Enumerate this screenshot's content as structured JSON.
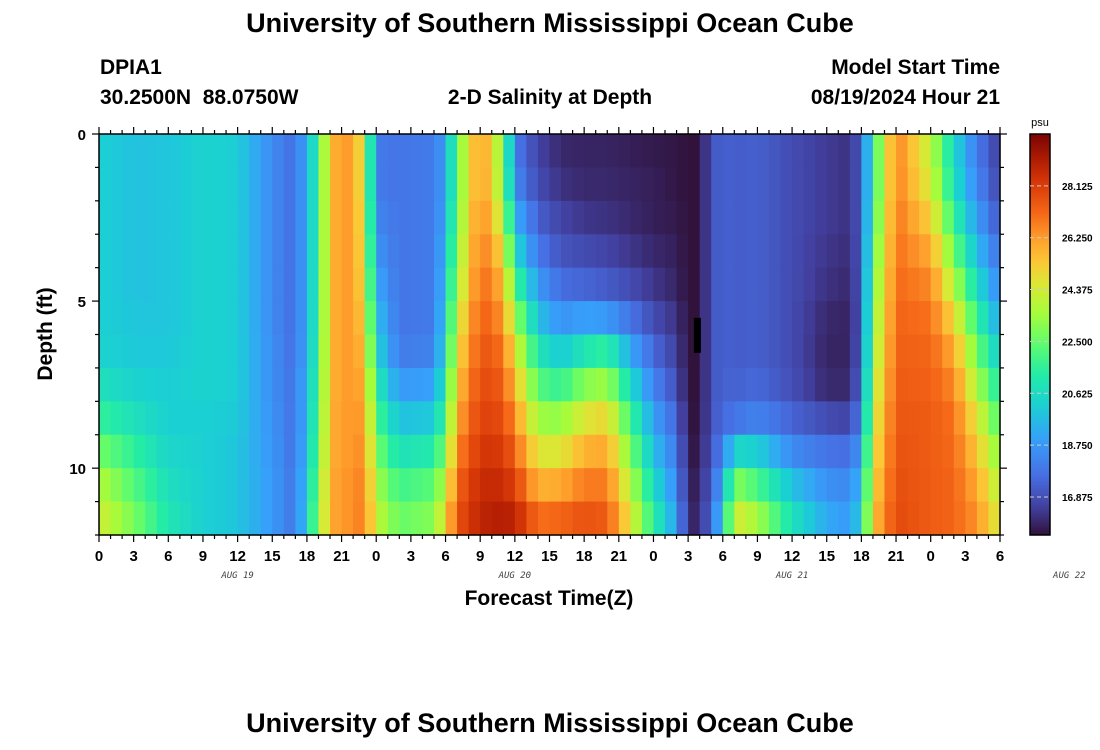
{
  "page": {
    "title": "University of Southern Mississippi Ocean Cube",
    "footer_title": "University of Southern Mississippi Ocean Cube",
    "station_id": "DPIA1",
    "station_coords": "30.2500N  88.0750W",
    "model_start_label": "Model Start Time",
    "model_start_value": "08/19/2024 Hour 21"
  },
  "chart_data": {
    "type": "heatmap",
    "title": "2-D Salinity at Depth",
    "xlabel": "Forecast Time(Z)",
    "ylabel": "Depth (ft)",
    "units": "psu",
    "hours_per_column": 1,
    "columns_start": "08/19 00Z",
    "x_tick_labels": [
      "0",
      "3",
      "6",
      "9",
      "12",
      "15",
      "18",
      "21",
      "0",
      "3",
      "6",
      "9",
      "12",
      "15",
      "18",
      "21",
      "0",
      "3",
      "6",
      "9",
      "12",
      "15",
      "18",
      "21",
      "0",
      "3",
      "6"
    ],
    "date_labels": [
      {
        "label": "AUG 19",
        "hour": 12
      },
      {
        "label": "AUG 20",
        "hour": 36
      },
      {
        "label": "AUG 21",
        "hour": 60
      },
      {
        "label": "AUG 22",
        "hour": 84
      }
    ],
    "y_ticks": [
      0,
      5,
      10
    ],
    "ylim": [
      12,
      0
    ],
    "depth_levels": 12,
    "colorbar": {
      "min": 15.5,
      "max": 30.0,
      "tick_values": [
        16.875,
        18.75,
        20.625,
        22.5,
        24.375,
        26.25,
        28.125
      ],
      "tick_labels": [
        "16.875",
        "18.750",
        "20.625",
        "22.500",
        "24.375",
        "26.250",
        "28.125"
      ]
    },
    "profile_keyframes": [
      {
        "hour": 0,
        "values": [
          20.2,
          20.2,
          20.2,
          20.2,
          20.2,
          20.2,
          20.3,
          20.8,
          21.6,
          22.7,
          23.7,
          24.3
        ]
      },
      {
        "hour": 3,
        "values": [
          19.8,
          19.8,
          19.8,
          19.8,
          19.8,
          19.9,
          20.0,
          20.3,
          20.8,
          21.5,
          22.2,
          22.8
        ]
      },
      {
        "hour": 6,
        "values": [
          19.9,
          19.9,
          19.9,
          19.9,
          19.9,
          19.9,
          20.0,
          20.1,
          20.2,
          20.4,
          20.7,
          21.0
        ]
      },
      {
        "hour": 9,
        "values": [
          20.3,
          20.3,
          20.3,
          20.3,
          20.3,
          20.3,
          20.3,
          20.3,
          20.2,
          20.2,
          20.2,
          20.2
        ]
      },
      {
        "hour": 12,
        "values": [
          20.1,
          20.1,
          20.1,
          20.1,
          20.1,
          20.1,
          20.1,
          20.1,
          20.0,
          19.9,
          19.9,
          19.9
        ]
      },
      {
        "hour": 15,
        "values": [
          18.4,
          18.4,
          18.4,
          18.4,
          18.4,
          18.4,
          18.5,
          18.5,
          18.6,
          18.7,
          18.8,
          18.8
        ]
      },
      {
        "hour": 17,
        "values": [
          17.6,
          17.6,
          17.6,
          17.6,
          17.6,
          17.6,
          17.6,
          17.7,
          17.7,
          17.7,
          17.8,
          17.8
        ]
      },
      {
        "hour": 19,
        "values": [
          21.5,
          21.5,
          21.5,
          21.5,
          21.5,
          21.5,
          21.6,
          21.8,
          22.0,
          22.3,
          22.7,
          23.0
        ]
      },
      {
        "hour": 20,
        "values": [
          25.8,
          25.8,
          25.8,
          25.8,
          25.8,
          25.8,
          25.8,
          25.8,
          25.9,
          25.9,
          26.0,
          26.0
        ]
      },
      {
        "hour": 22,
        "values": [
          26.4,
          26.4,
          26.4,
          26.4,
          26.4,
          26.4,
          26.4,
          26.4,
          26.4,
          26.4,
          26.5,
          26.5
        ]
      },
      {
        "hour": 23,
        "values": [
          24.0,
          24.0,
          24.2,
          24.4,
          24.6,
          25.0,
          25.4,
          25.8,
          26.2,
          26.5,
          26.7,
          26.8
        ]
      },
      {
        "hour": 24,
        "values": [
          18.0,
          18.0,
          18.3,
          18.7,
          19.2,
          19.8,
          20.4,
          21.2,
          22.0,
          22.8,
          23.5,
          24.0
        ]
      },
      {
        "hour": 26,
        "values": [
          17.8,
          17.8,
          17.8,
          17.8,
          17.8,
          17.8,
          18.0,
          18.8,
          19.8,
          20.8,
          21.8,
          22.5
        ]
      },
      {
        "hour": 29,
        "values": [
          18.0,
          18.0,
          18.0,
          18.0,
          18.0,
          18.0,
          18.2,
          19.0,
          20.0,
          21.2,
          22.3,
          23.0
        ]
      },
      {
        "hour": 30,
        "values": [
          19.0,
          19.0,
          19.2,
          19.5,
          19.8,
          20.2,
          20.6,
          21.2,
          22.0,
          23.0,
          24.0,
          25.0
        ]
      },
      {
        "hour": 31,
        "values": [
          22.5,
          22.5,
          22.8,
          23.2,
          23.6,
          24.2,
          24.8,
          25.4,
          26.0,
          26.6,
          27.2,
          27.6
        ]
      },
      {
        "hour": 33,
        "values": [
          26.6,
          26.6,
          26.8,
          27.0,
          27.2,
          27.4,
          27.6,
          27.8,
          28.0,
          28.3,
          28.6,
          28.8
        ]
      },
      {
        "hour": 35,
        "values": [
          23.0,
          23.2,
          24.0,
          25.0,
          25.8,
          26.4,
          27.0,
          27.4,
          27.8,
          28.2,
          28.6,
          29.0
        ]
      },
      {
        "hour": 36,
        "values": [
          18.0,
          18.4,
          19.4,
          20.6,
          22.0,
          23.4,
          24.6,
          25.6,
          26.4,
          27.2,
          28.0,
          28.8
        ]
      },
      {
        "hour": 38,
        "values": [
          16.6,
          16.8,
          17.3,
          17.9,
          18.8,
          19.8,
          21.0,
          22.2,
          23.4,
          24.6,
          25.8,
          27.0
        ]
      },
      {
        "hour": 40,
        "values": [
          16.0,
          16.2,
          16.6,
          17.0,
          17.6,
          18.6,
          20.0,
          21.6,
          23.2,
          24.6,
          26.0,
          27.2
        ]
      },
      {
        "hour": 42,
        "values": [
          15.9,
          16.0,
          16.3,
          16.8,
          17.4,
          19.0,
          21.0,
          23.0,
          24.6,
          25.8,
          26.8,
          27.6
        ]
      },
      {
        "hour": 44,
        "values": [
          15.9,
          16.0,
          16.2,
          16.6,
          17.2,
          18.8,
          21.5,
          23.4,
          25.0,
          26.0,
          26.8,
          27.4
        ]
      },
      {
        "hour": 46,
        "values": [
          15.8,
          15.9,
          16.0,
          16.3,
          16.8,
          17.8,
          19.2,
          20.6,
          21.8,
          22.8,
          23.8,
          24.6
        ]
      },
      {
        "hour": 48,
        "values": [
          15.7,
          15.8,
          15.8,
          16.0,
          16.3,
          16.8,
          17.5,
          18.2,
          19.0,
          19.8,
          20.6,
          21.4
        ]
      },
      {
        "hour": 50,
        "values": [
          15.6,
          15.6,
          15.7,
          15.8,
          15.9,
          16.2,
          16.5,
          16.9,
          17.4,
          17.9,
          18.4,
          18.9
        ]
      },
      {
        "hour": 51,
        "values": [
          15.5,
          15.5,
          15.5,
          15.5,
          15.5,
          15.5,
          15.5,
          15.5,
          15.6,
          15.7,
          15.8,
          15.9
        ]
      },
      {
        "hour": 52,
        "values": [
          15.5,
          15.5,
          15.5,
          15.5,
          15.5,
          15.5,
          15.5,
          15.5,
          15.5,
          15.6,
          15.8,
          16.0
        ]
      },
      {
        "hour": 53,
        "values": [
          17.0,
          17.0,
          17.0,
          17.0,
          17.0,
          17.0,
          17.0,
          17.0,
          17.1,
          17.2,
          17.4,
          17.6
        ]
      },
      {
        "hour": 54,
        "values": [
          17.4,
          17.4,
          17.4,
          17.4,
          17.4,
          17.4,
          17.4,
          17.4,
          17.5,
          18.0,
          19.0,
          20.0
        ]
      },
      {
        "hour": 55,
        "values": [
          17.2,
          17.2,
          17.2,
          17.2,
          17.2,
          17.2,
          17.2,
          17.3,
          17.8,
          20.5,
          23.0,
          24.5
        ]
      },
      {
        "hour": 57,
        "values": [
          17.3,
          17.3,
          17.3,
          17.3,
          17.3,
          17.3,
          17.3,
          17.5,
          18.2,
          20.2,
          22.0,
          23.5
        ]
      },
      {
        "hour": 60,
        "values": [
          16.8,
          16.8,
          16.8,
          16.8,
          16.8,
          16.8,
          16.8,
          16.9,
          17.4,
          18.4,
          19.8,
          20.8
        ]
      },
      {
        "hour": 63,
        "values": [
          16.4,
          16.4,
          16.4,
          16.3,
          16.2,
          16.0,
          15.9,
          16.0,
          16.8,
          17.8,
          18.6,
          19.2
        ]
      },
      {
        "hour": 65,
        "values": [
          16.2,
          16.2,
          16.2,
          16.1,
          16.0,
          15.9,
          15.9,
          16.0,
          16.6,
          17.6,
          18.3,
          18.8
        ]
      },
      {
        "hour": 66,
        "values": [
          17.2,
          17.2,
          17.2,
          17.2,
          17.2,
          17.2,
          17.3,
          17.6,
          18.2,
          19.0,
          19.8,
          20.4
        ]
      },
      {
        "hour": 67,
        "values": [
          21.5,
          21.5,
          21.8,
          22.2,
          22.6,
          23.0,
          23.4,
          23.8,
          24.2,
          24.6,
          25.0,
          25.4
        ]
      },
      {
        "hour": 69,
        "values": [
          26.8,
          26.8,
          26.9,
          27.0,
          27.1,
          27.2,
          27.3,
          27.4,
          27.5,
          27.6,
          27.7,
          27.8
        ]
      },
      {
        "hour": 72,
        "values": [
          24.0,
          24.4,
          25.2,
          26.0,
          26.6,
          27.0,
          27.2,
          27.3,
          27.4,
          27.4,
          27.4,
          27.4
        ]
      },
      {
        "hour": 74,
        "values": [
          20.5,
          20.8,
          21.6,
          22.6,
          23.8,
          25.0,
          26.0,
          26.6,
          27.0,
          27.1,
          27.2,
          27.2
        ]
      },
      {
        "hour": 76,
        "values": [
          18.0,
          18.3,
          18.9,
          19.7,
          20.6,
          21.6,
          22.6,
          23.6,
          24.6,
          25.4,
          26.0,
          26.4
        ]
      },
      {
        "hour": 78,
        "values": [
          16.4,
          16.6,
          17.0,
          17.6,
          18.3,
          19.1,
          20.0,
          21.0,
          22.0,
          22.9,
          23.7,
          24.3
        ]
      }
    ],
    "plotted_max_hour": 78
  }
}
